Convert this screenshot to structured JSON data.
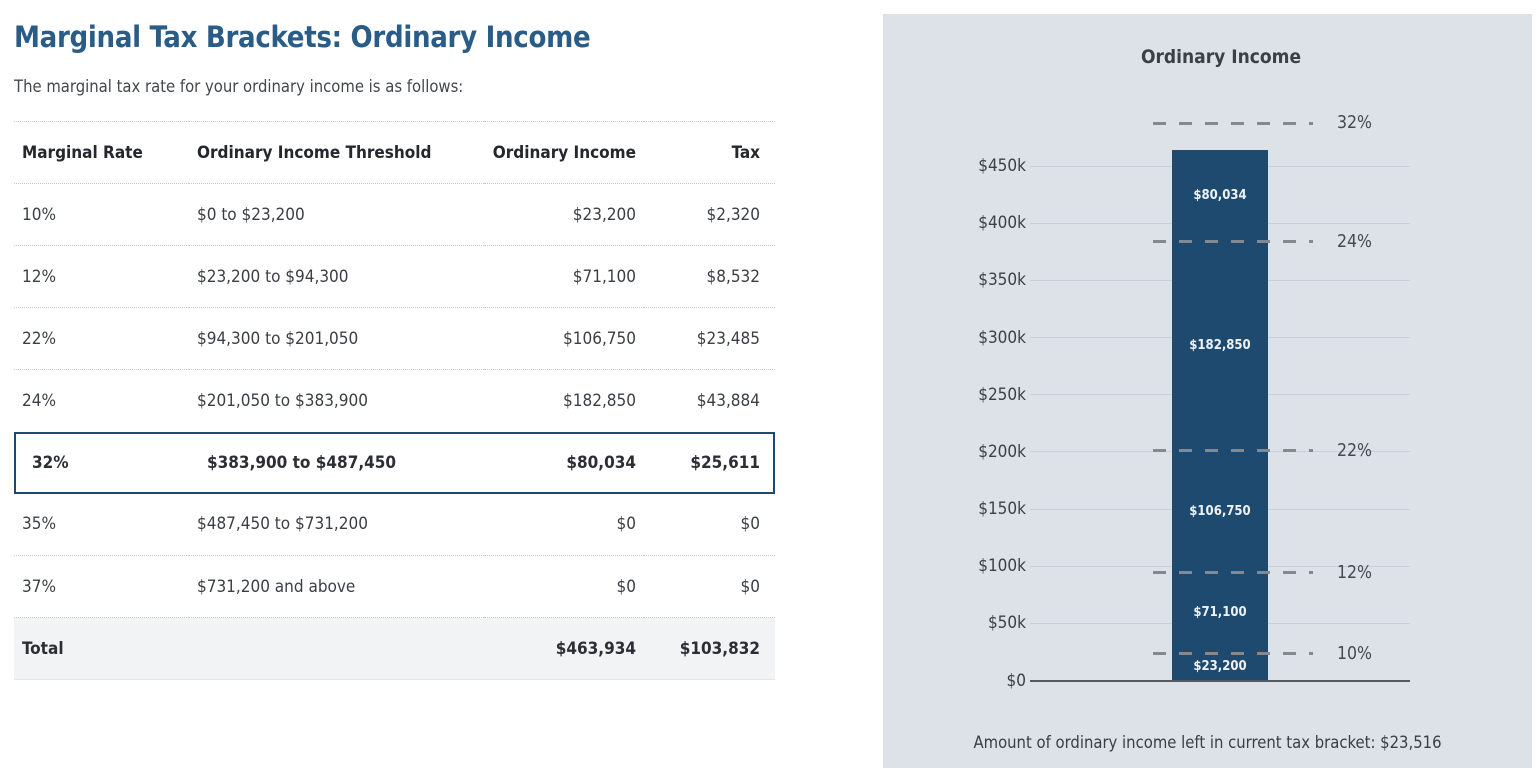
{
  "page": {
    "title": "Marginal Tax Brackets: Ordinary Income",
    "subtitle": "The marginal tax rate for your ordinary income is as follows:"
  },
  "table": {
    "columns": [
      "Marginal Rate",
      "Ordinary Income Threshold",
      "Ordinary Income",
      "Tax"
    ],
    "rows": [
      {
        "rate": "10%",
        "threshold": "$0 to $23,200",
        "income": "$23,200",
        "tax": "$2,320",
        "highlight": false
      },
      {
        "rate": "12%",
        "threshold": "$23,200 to $94,300",
        "income": "$71,100",
        "tax": "$8,532",
        "highlight": false
      },
      {
        "rate": "22%",
        "threshold": "$94,300 to $201,050",
        "income": "$106,750",
        "tax": "$23,485",
        "highlight": false
      },
      {
        "rate": "24%",
        "threshold": "$201,050 to $383,900",
        "income": "$182,850",
        "tax": "$43,884",
        "highlight": false
      },
      {
        "rate": "32%",
        "threshold": "$383,900 to $487,450",
        "income": "$80,034",
        "tax": "$25,611",
        "highlight": true
      },
      {
        "rate": "35%",
        "threshold": "$487,450 to $731,200",
        "income": "$0",
        "tax": "$0",
        "highlight": false
      },
      {
        "rate": "37%",
        "threshold": "$731,200 and above",
        "income": "$0",
        "tax": "$0",
        "highlight": false
      }
    ],
    "total": {
      "label": "Total",
      "income": "$463,934",
      "tax": "$103,832"
    }
  },
  "chart_data": {
    "type": "bar",
    "stacked": true,
    "title": "Ordinary Income",
    "total_income": 463934,
    "ylim": [
      0,
      487450
    ],
    "y_ticks": [
      {
        "label": "$450k",
        "value": 450000
      },
      {
        "label": "$400k",
        "value": 400000
      },
      {
        "label": "$350k",
        "value": 350000
      },
      {
        "label": "$300k",
        "value": 300000
      },
      {
        "label": "$250k",
        "value": 250000
      },
      {
        "label": "$200k",
        "value": 200000
      },
      {
        "label": "$150k",
        "value": 150000
      },
      {
        "label": "$100k",
        "value": 100000
      },
      {
        "label": "$50k",
        "value": 50000
      },
      {
        "label": "$0",
        "value": 0
      }
    ],
    "segments": [
      {
        "bracket": "10%",
        "label": "$23,200",
        "value": 23200
      },
      {
        "bracket": "12%",
        "label": "$71,100",
        "value": 71100
      },
      {
        "bracket": "22%",
        "label": "$106,750",
        "value": 106750
      },
      {
        "bracket": "24%",
        "label": "$182,850",
        "value": 182850
      },
      {
        "bracket": "32%",
        "label": "$80,034",
        "value": 80034
      }
    ],
    "bracket_thresholds": [
      {
        "label": "10%",
        "value": 23200
      },
      {
        "label": "12%",
        "value": 94300
      },
      {
        "label": "22%",
        "value": 201050
      },
      {
        "label": "24%",
        "value": 383900
      },
      {
        "label": "32%",
        "value": 487450
      }
    ],
    "caption": "Amount of ordinary income left in current tax bracket: $23,516",
    "colors": {
      "bar": "#1d4a6e",
      "panel_bg": "#dde2e9",
      "gridline": "#c8d1da",
      "dash_line": "#85898f",
      "title_accent": "#2a5c88",
      "highlight_border": "#1d4a6e"
    }
  }
}
